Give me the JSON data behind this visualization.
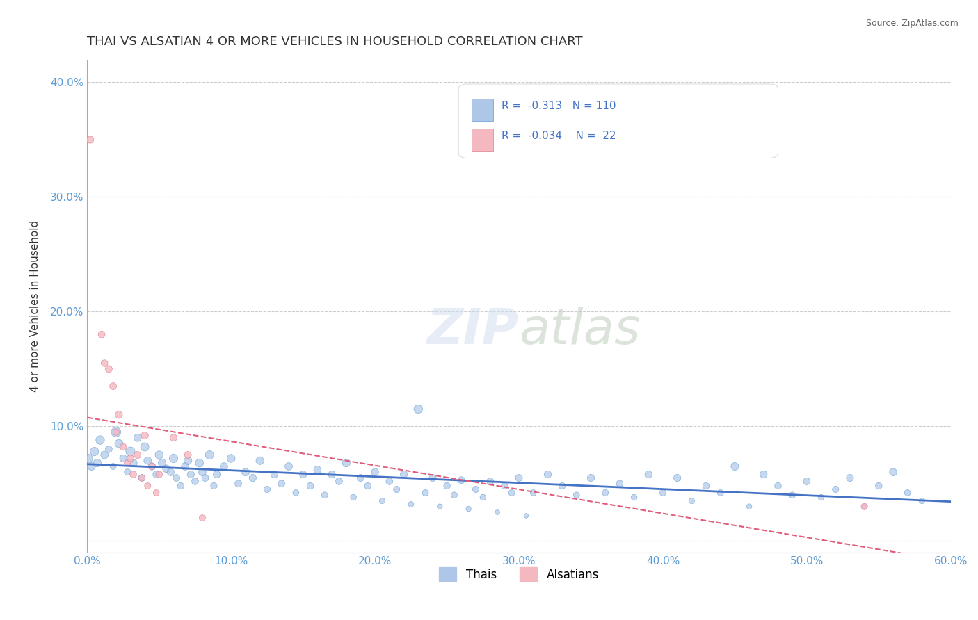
{
  "title": "THAI VS ALSATIAN 4 OR MORE VEHICLES IN HOUSEHOLD CORRELATION CHART",
  "source": "Source: ZipAtlas.com",
  "xlabel": "",
  "ylabel": "4 or more Vehicles in Household",
  "xlim": [
    0.0,
    0.6
  ],
  "ylim": [
    -0.01,
    0.42
  ],
  "xticks": [
    0.0,
    0.1,
    0.2,
    0.3,
    0.4,
    0.5,
    0.6
  ],
  "xticklabels": [
    "0.0%",
    "10.0%",
    "20.0%",
    "30.0%",
    "40.0%",
    "50.0%",
    "60.0%"
  ],
  "yticks": [
    0.0,
    0.1,
    0.2,
    0.3,
    0.4
  ],
  "yticklabels": [
    "",
    "10.0%",
    "20.0%",
    "30.0%",
    "40.0%"
  ],
  "legend_r_thai": "-0.313",
  "legend_n_thai": "110",
  "legend_r_als": "-0.034",
  "legend_n_als": "22",
  "thai_color": "#aec6e8",
  "thai_edge_color": "#5b9bd5",
  "thai_line_color": "#4472c4",
  "als_color": "#f4b8c1",
  "als_edge_color": "#e07b8a",
  "als_line_color": "#e05c7a",
  "watermark": "ZIPatlas",
  "background_color": "#ffffff",
  "grid_color": "#cccccc",
  "thai_scatter": [
    [
      0.009,
      0.088
    ],
    [
      0.012,
      0.075
    ],
    [
      0.015,
      0.08
    ],
    [
      0.018,
      0.065
    ],
    [
      0.02,
      0.095
    ],
    [
      0.022,
      0.085
    ],
    [
      0.025,
      0.072
    ],
    [
      0.028,
      0.06
    ],
    [
      0.03,
      0.078
    ],
    [
      0.032,
      0.068
    ],
    [
      0.035,
      0.09
    ],
    [
      0.038,
      0.055
    ],
    [
      0.04,
      0.082
    ],
    [
      0.042,
      0.07
    ],
    [
      0.045,
      0.065
    ],
    [
      0.048,
      0.058
    ],
    [
      0.05,
      0.075
    ],
    [
      0.052,
      0.068
    ],
    [
      0.055,
      0.063
    ],
    [
      0.058,
      0.06
    ],
    [
      0.06,
      0.072
    ],
    [
      0.062,
      0.055
    ],
    [
      0.065,
      0.048
    ],
    [
      0.068,
      0.065
    ],
    [
      0.07,
      0.07
    ],
    [
      0.072,
      0.058
    ],
    [
      0.075,
      0.052
    ],
    [
      0.078,
      0.068
    ],
    [
      0.08,
      0.06
    ],
    [
      0.082,
      0.055
    ],
    [
      0.085,
      0.075
    ],
    [
      0.088,
      0.048
    ],
    [
      0.09,
      0.058
    ],
    [
      0.095,
      0.065
    ],
    [
      0.1,
      0.072
    ],
    [
      0.105,
      0.05
    ],
    [
      0.11,
      0.06
    ],
    [
      0.115,
      0.055
    ],
    [
      0.12,
      0.07
    ],
    [
      0.125,
      0.045
    ],
    [
      0.13,
      0.058
    ],
    [
      0.135,
      0.05
    ],
    [
      0.14,
      0.065
    ],
    [
      0.145,
      0.042
    ],
    [
      0.15,
      0.058
    ],
    [
      0.155,
      0.048
    ],
    [
      0.16,
      0.062
    ],
    [
      0.165,
      0.04
    ],
    [
      0.17,
      0.058
    ],
    [
      0.175,
      0.052
    ],
    [
      0.18,
      0.068
    ],
    [
      0.185,
      0.038
    ],
    [
      0.19,
      0.055
    ],
    [
      0.195,
      0.048
    ],
    [
      0.2,
      0.06
    ],
    [
      0.205,
      0.035
    ],
    [
      0.21,
      0.052
    ],
    [
      0.215,
      0.045
    ],
    [
      0.22,
      0.058
    ],
    [
      0.225,
      0.032
    ],
    [
      0.23,
      0.115
    ],
    [
      0.235,
      0.042
    ],
    [
      0.24,
      0.055
    ],
    [
      0.245,
      0.03
    ],
    [
      0.25,
      0.048
    ],
    [
      0.255,
      0.04
    ],
    [
      0.26,
      0.053
    ],
    [
      0.265,
      0.028
    ],
    [
      0.27,
      0.045
    ],
    [
      0.275,
      0.038
    ],
    [
      0.28,
      0.052
    ],
    [
      0.285,
      0.025
    ],
    [
      0.29,
      0.048
    ],
    [
      0.295,
      0.042
    ],
    [
      0.3,
      0.055
    ],
    [
      0.305,
      0.022
    ],
    [
      0.31,
      0.042
    ],
    [
      0.32,
      0.058
    ],
    [
      0.33,
      0.048
    ],
    [
      0.34,
      0.04
    ],
    [
      0.35,
      0.055
    ],
    [
      0.36,
      0.042
    ],
    [
      0.37,
      0.05
    ],
    [
      0.38,
      0.038
    ],
    [
      0.39,
      0.058
    ],
    [
      0.4,
      0.042
    ],
    [
      0.41,
      0.055
    ],
    [
      0.42,
      0.035
    ],
    [
      0.43,
      0.048
    ],
    [
      0.44,
      0.042
    ],
    [
      0.45,
      0.065
    ],
    [
      0.46,
      0.03
    ],
    [
      0.47,
      0.058
    ],
    [
      0.48,
      0.048
    ],
    [
      0.49,
      0.04
    ],
    [
      0.5,
      0.052
    ],
    [
      0.51,
      0.038
    ],
    [
      0.52,
      0.045
    ],
    [
      0.53,
      0.055
    ],
    [
      0.54,
      0.03
    ],
    [
      0.55,
      0.048
    ],
    [
      0.56,
      0.06
    ],
    [
      0.57,
      0.042
    ],
    [
      0.58,
      0.035
    ],
    [
      0.001,
      0.072
    ],
    [
      0.003,
      0.065
    ],
    [
      0.005,
      0.078
    ],
    [
      0.007,
      0.068
    ]
  ],
  "thai_sizes": [
    80,
    60,
    50,
    40,
    100,
    70,
    55,
    45,
    90,
    65,
    60,
    50,
    75,
    60,
    55,
    50,
    70,
    65,
    60,
    55,
    80,
    50,
    45,
    60,
    65,
    55,
    50,
    70,
    60,
    50,
    75,
    45,
    55,
    60,
    70,
    50,
    60,
    55,
    65,
    45,
    55,
    50,
    60,
    40,
    55,
    48,
    60,
    40,
    55,
    50,
    65,
    38,
    52,
    47,
    57,
    35,
    50,
    44,
    56,
    32,
    80,
    42,
    53,
    30,
    47,
    40,
    52,
    28,
    44,
    38,
    50,
    25,
    47,
    42,
    53,
    22,
    41,
    57,
    47,
    40,
    54,
    42,
    49,
    38,
    57,
    41,
    54,
    35,
    47,
    42,
    64,
    30,
    57,
    47,
    40,
    51,
    38,
    44,
    54,
    30,
    47,
    59,
    41,
    35,
    71,
    64,
    77,
    67
  ],
  "als_scatter": [
    [
      0.002,
      0.35
    ],
    [
      0.01,
      0.18
    ],
    [
      0.012,
      0.155
    ],
    [
      0.015,
      0.15
    ],
    [
      0.018,
      0.135
    ],
    [
      0.02,
      0.095
    ],
    [
      0.022,
      0.11
    ],
    [
      0.025,
      0.082
    ],
    [
      0.028,
      0.068
    ],
    [
      0.03,
      0.072
    ],
    [
      0.032,
      0.058
    ],
    [
      0.035,
      0.075
    ],
    [
      0.038,
      0.055
    ],
    [
      0.04,
      0.092
    ],
    [
      0.042,
      0.048
    ],
    [
      0.045,
      0.065
    ],
    [
      0.048,
      0.042
    ],
    [
      0.05,
      0.058
    ],
    [
      0.06,
      0.09
    ],
    [
      0.07,
      0.075
    ],
    [
      0.08,
      0.02
    ],
    [
      0.54,
      0.03
    ]
  ],
  "als_sizes": [
    55,
    50,
    48,
    52,
    50,
    45,
    55,
    48,
    45,
    50,
    48,
    52,
    45,
    55,
    42,
    50,
    40,
    48,
    52,
    50,
    42,
    45
  ]
}
